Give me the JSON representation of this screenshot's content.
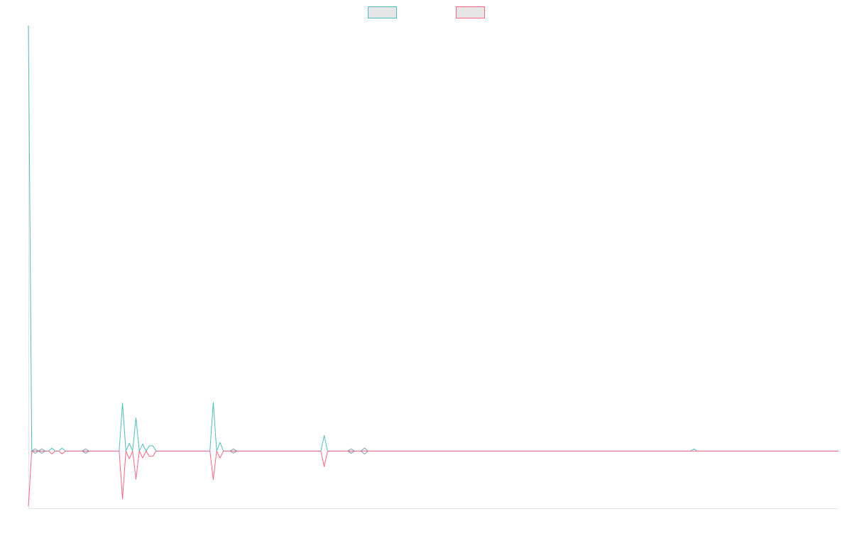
{
  "chart_data": {
    "type": "line",
    "title": "",
    "xlabel": "",
    "ylabel": "",
    "ylim": [
      -1.4,
      10.4
    ],
    "grid": false,
    "legend": {
      "placement": "top-center"
    },
    "series": [
      {
        "name": "",
        "color": "#4bc0c0",
        "fill": "#e6e6e6",
        "values": [
          10.4,
          0,
          0,
          0,
          0,
          0,
          0,
          0.07,
          0,
          0,
          0.07,
          0,
          0,
          0,
          0,
          0,
          0,
          0,
          0,
          0,
          0,
          0,
          0,
          0,
          0,
          0,
          0,
          0,
          1.17,
          0,
          0.19,
          0,
          0.81,
          0,
          0.17,
          0,
          0.13,
          0.13,
          0,
          0,
          0,
          0,
          0,
          0,
          0,
          0,
          0,
          0,
          0,
          0,
          0,
          0,
          0,
          0,
          0,
          1.19,
          0,
          0.21,
          0,
          0,
          0,
          0,
          0,
          0,
          0,
          0,
          0,
          0,
          0,
          0,
          0,
          0,
          0,
          0,
          0,
          0,
          0,
          0,
          0,
          0,
          0,
          0,
          0,
          0,
          0,
          0,
          0,
          0,
          0.38,
          0,
          0,
          0,
          0,
          0,
          0,
          0,
          0,
          0,
          0,
          0,
          0,
          0,
          0,
          0,
          0,
          0,
          0,
          0,
          0,
          0,
          0,
          0,
          0,
          0,
          0,
          0,
          0,
          0,
          0,
          0,
          0,
          0,
          0,
          0,
          0,
          0,
          0,
          0,
          0,
          0,
          0,
          0,
          0,
          0,
          0,
          0,
          0,
          0,
          0,
          0,
          0,
          0,
          0,
          0,
          0,
          0,
          0,
          0,
          0,
          0,
          0,
          0,
          0,
          0,
          0,
          0,
          0,
          0,
          0,
          0,
          0,
          0,
          0,
          0,
          0,
          0,
          0,
          0,
          0,
          0,
          0,
          0,
          0,
          0,
          0,
          0,
          0,
          0,
          0,
          0,
          0,
          0,
          0,
          0,
          0,
          0,
          0,
          0,
          0,
          0,
          0,
          0,
          0,
          0,
          0,
          0,
          0,
          0,
          0.05,
          0,
          0,
          0,
          0,
          0,
          0,
          0,
          0,
          0,
          0,
          0,
          0,
          0,
          0,
          0,
          0,
          0,
          0,
          0,
          0,
          0,
          0,
          0,
          0,
          0,
          0,
          0,
          0,
          0,
          0,
          0,
          0,
          0,
          0,
          0,
          0,
          0,
          0,
          0,
          0,
          0,
          0,
          0
        ]
      },
      {
        "name": "",
        "color": "#ff6384",
        "fill": "#e6e6e6",
        "values": [
          -1.35,
          0,
          0,
          0,
          0,
          0,
          0,
          -0.07,
          0,
          0,
          -0.07,
          0,
          0,
          0,
          0,
          0,
          0,
          0,
          0,
          0,
          0,
          0,
          0,
          0,
          0,
          0,
          0,
          0,
          -1.17,
          0,
          -0.19,
          0,
          -0.69,
          0,
          -0.17,
          0,
          -0.13,
          -0.13,
          0,
          0,
          0,
          0,
          0,
          0,
          0,
          0,
          0,
          0,
          0,
          0,
          0,
          0,
          0,
          0,
          0,
          -0.7,
          0,
          -0.17,
          0,
          0,
          0,
          0,
          0,
          0,
          0,
          0,
          0,
          0,
          0,
          0,
          0,
          0,
          0,
          0,
          0,
          0,
          0,
          0,
          0,
          0,
          0,
          0,
          0,
          0,
          0,
          0,
          0,
          0,
          -0.38,
          0,
          0,
          0,
          0,
          0,
          0,
          0,
          0,
          0,
          0,
          0,
          0,
          0,
          0,
          0,
          0,
          0,
          0,
          0,
          0,
          0,
          0,
          0,
          0,
          0,
          0,
          0,
          0,
          0,
          0,
          0,
          0,
          0,
          0,
          0,
          0,
          0,
          0,
          0,
          0,
          0,
          0,
          0,
          0,
          0,
          0,
          0,
          0,
          0,
          0,
          0,
          0,
          0,
          0,
          0,
          0,
          0,
          0,
          0,
          0,
          0,
          0,
          0,
          0,
          0,
          0,
          0,
          0,
          0,
          0,
          0,
          0,
          0,
          0,
          0,
          0,
          0,
          0,
          0,
          0,
          0,
          0,
          0,
          0,
          0,
          0,
          0,
          0,
          0,
          0,
          0,
          0,
          0,
          0,
          0,
          0,
          0,
          0,
          0,
          0,
          0,
          0,
          0,
          0,
          0,
          0,
          0,
          0,
          0,
          0,
          0,
          0,
          0,
          0,
          0,
          0,
          0,
          0,
          0,
          0,
          0,
          0,
          0,
          0,
          0,
          0,
          0,
          0,
          0,
          0,
          0,
          0,
          0,
          0,
          0,
          0,
          0,
          0,
          0,
          0,
          0,
          0,
          0,
          0,
          0,
          0,
          0,
          0,
          0,
          0,
          0,
          0,
          0
        ]
      }
    ],
    "markers": [
      {
        "index": 2,
        "magnitude": 0.02
      },
      {
        "index": 4,
        "magnitude": 0.02
      },
      {
        "index": 17,
        "magnitude": 0.02
      },
      {
        "index": 61,
        "magnitude": 0.01
      },
      {
        "index": 96,
        "magnitude": 0.02
      },
      {
        "index": 100,
        "magnitude": 0.04
      }
    ]
  }
}
